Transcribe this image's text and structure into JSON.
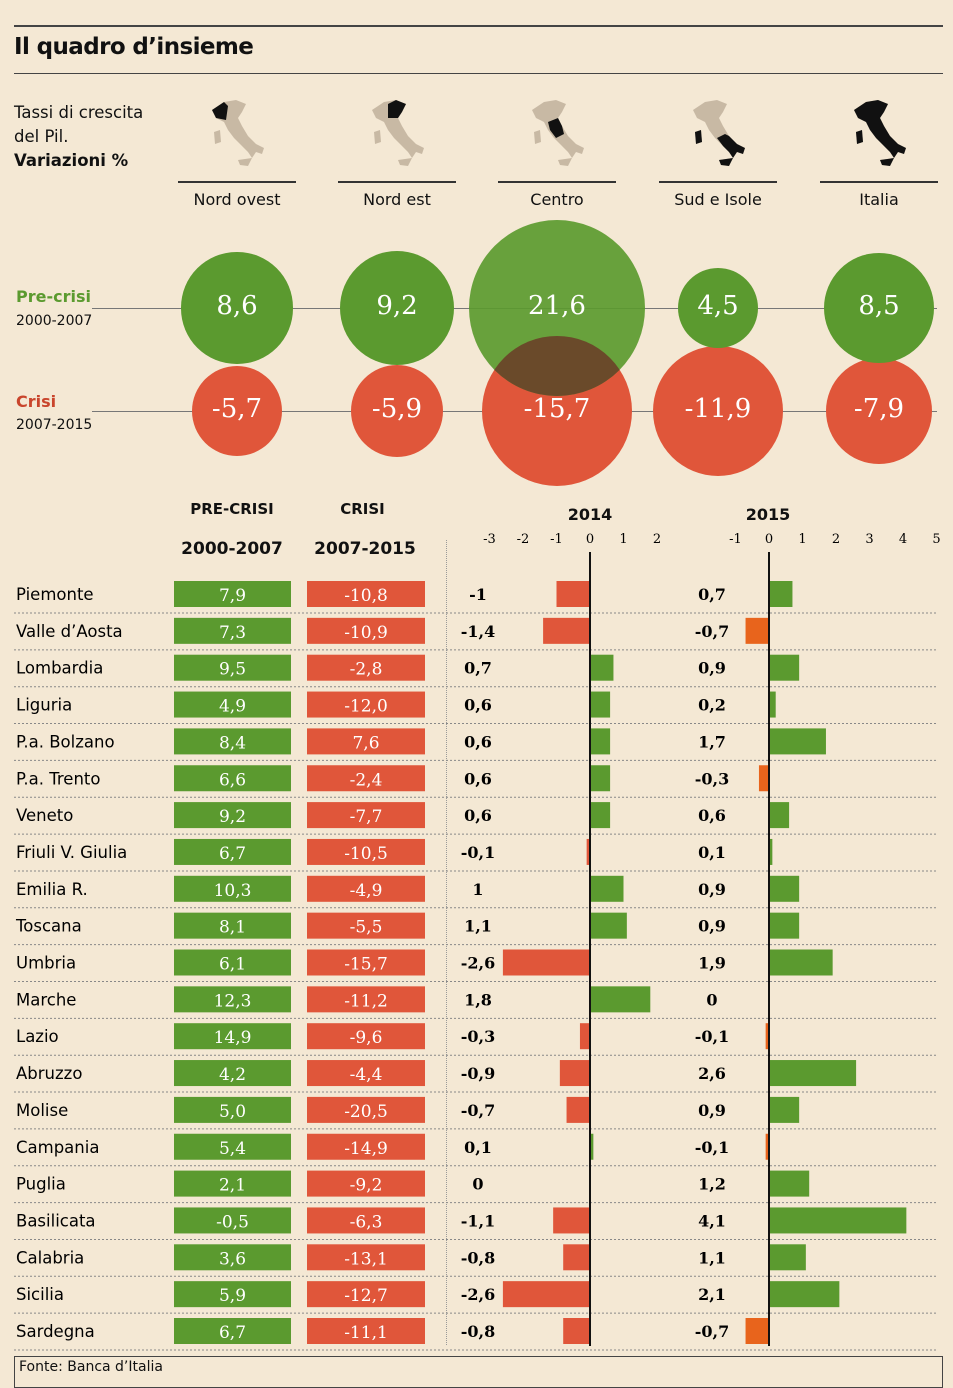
{
  "header": {
    "title": "Il quadro d’insieme",
    "intro_line1": "Tassi di crescita",
    "intro_line2": "del Pil.",
    "intro_bold": "Variazioni %"
  },
  "bubbles": {
    "rows": [
      {
        "label": "Pre-crisi",
        "years": "2000-2007",
        "color": "#5b9a2f"
      },
      {
        "label": "Crisi",
        "years": "2007-2015",
        "color": "#e0563a"
      }
    ],
    "areas": [
      {
        "name": "Nord ovest",
        "pre": "8,6",
        "pre_value": 8.6,
        "crisi": "-5,7",
        "crisi_value": -5.7,
        "map": "nord-ovest-map-icon"
      },
      {
        "name": "Nord est",
        "pre": "9,2",
        "pre_value": 9.2,
        "crisi": "-5,9",
        "crisi_value": -5.9,
        "map": "nord-est-map-icon"
      },
      {
        "name": "Centro",
        "pre": "21,6",
        "pre_value": 21.6,
        "crisi": "-15,7",
        "crisi_value": -15.7,
        "map": "centro-map-icon"
      },
      {
        "name": "Sud e Isole",
        "pre": "4,5",
        "pre_value": 4.5,
        "crisi": "-11,9",
        "crisi_value": -11.9,
        "map": "sud-isole-map-icon"
      },
      {
        "name": "Italia",
        "pre": "8,5",
        "pre_value": 8.5,
        "crisi": "-7,9",
        "crisi_value": -7.9,
        "map": "italia-map-icon"
      }
    ]
  },
  "table": {
    "col_pre": "PRE-CRISI",
    "col_pre_years": "2000-2007",
    "col_crisi": "CRISI",
    "col_crisi_years": "2007-2015",
    "col_2014": "2014",
    "col_2015": "2015",
    "ticks_2014": [
      "-3",
      "-2",
      "-1",
      "0",
      "1",
      "2"
    ],
    "ticks_2015": [
      "-1",
      "0",
      "1",
      "2",
      "3",
      "4",
      "5"
    ]
  },
  "colors": {
    "green": "#5b9a2f",
    "red": "#e0563a",
    "orange": "#e8641c",
    "overlap": "#6a4a2a",
    "background": "#f4e8d4"
  },
  "chart_data": {
    "type": "table",
    "title": "Il quadro d’insieme",
    "subtitle": "Tassi di crescita del Pil. Variazioni %",
    "columns": [
      "PRE-CRISI 2000-2007",
      "CRISI 2007-2015",
      "2014",
      "2015"
    ],
    "xlim_2014": [
      -3,
      2
    ],
    "xlim_2015": [
      -1,
      5
    ],
    "rows": [
      {
        "region": "Piemonte",
        "pre": "7,9",
        "crisi": "-10,8",
        "y2014": "-1",
        "v2014": -1,
        "y2015": "0,7",
        "v2015": 0.7
      },
      {
        "region": "Valle d’Aosta",
        "pre": "7,3",
        "crisi": "-10,9",
        "y2014": "-1,4",
        "v2014": -1.4,
        "y2015": "-0,7",
        "v2015": -0.7
      },
      {
        "region": "Lombardia",
        "pre": "9,5",
        "crisi": "-2,8",
        "y2014": "0,7",
        "v2014": 0.7,
        "y2015": "0,9",
        "v2015": 0.9
      },
      {
        "region": "Liguria",
        "pre": "4,9",
        "crisi": "-12,0",
        "y2014": "0,6",
        "v2014": 0.6,
        "y2015": "0,2",
        "v2015": 0.2
      },
      {
        "region": "P.a. Bolzano",
        "pre": "8,4",
        "crisi": "7,6",
        "y2014": "0,6",
        "v2014": 0.6,
        "y2015": "1,7",
        "v2015": 1.7
      },
      {
        "region": "P.a. Trento",
        "pre": "6,6",
        "crisi": "-2,4",
        "y2014": "0,6",
        "v2014": 0.6,
        "y2015": "-0,3",
        "v2015": -0.3
      },
      {
        "region": "Veneto",
        "pre": "9,2",
        "crisi": "-7,7",
        "y2014": "0,6",
        "v2014": 0.6,
        "y2015": "0,6",
        "v2015": 0.6
      },
      {
        "region": "Friuli V. Giulia",
        "pre": "6,7",
        "crisi": "-10,5",
        "y2014": "-0,1",
        "v2014": -0.1,
        "y2015": "0,1",
        "v2015": 0.1
      },
      {
        "region": "Emilia R.",
        "pre": "10,3",
        "crisi": "-4,9",
        "y2014": "1",
        "v2014": 1,
        "y2015": "0,9",
        "v2015": 0.9
      },
      {
        "region": "Toscana",
        "pre": "8,1",
        "crisi": "-5,5",
        "y2014": "1,1",
        "v2014": 1.1,
        "y2015": "0,9",
        "v2015": 0.9
      },
      {
        "region": "Umbria",
        "pre": "6,1",
        "crisi": "-15,7",
        "y2014": "-2,6",
        "v2014": -2.6,
        "y2015": "1,9",
        "v2015": 1.9
      },
      {
        "region": "Marche",
        "pre": "12,3",
        "crisi": "-11,2",
        "y2014": "1,8",
        "v2014": 1.8,
        "y2015": "0",
        "v2015": 0
      },
      {
        "region": "Lazio",
        "pre": "14,9",
        "crisi": "-9,6",
        "y2014": "-0,3",
        "v2014": -0.3,
        "y2015": "-0,1",
        "v2015": -0.1
      },
      {
        "region": "Abruzzo",
        "pre": "4,2",
        "crisi": "-4,4",
        "y2014": "-0,9",
        "v2014": -0.9,
        "y2015": "2,6",
        "v2015": 2.6
      },
      {
        "region": "Molise",
        "pre": "5,0",
        "crisi": "-20,5",
        "y2014": "-0,7",
        "v2014": -0.7,
        "y2015": "0,9",
        "v2015": 0.9
      },
      {
        "region": "Campania",
        "pre": "5,4",
        "crisi": "-14,9",
        "y2014": "0,1",
        "v2014": 0.1,
        "y2015": "-0,1",
        "v2015": -0.1
      },
      {
        "region": "Puglia",
        "pre": "2,1",
        "crisi": "-9,2",
        "y2014": "0",
        "v2014": 0,
        "y2015": "1,2",
        "v2015": 1.2
      },
      {
        "region": "Basilicata",
        "pre": "-0,5",
        "crisi": "-6,3",
        "y2014": "-1,1",
        "v2014": -1.1,
        "y2015": "4,1",
        "v2015": 4.1
      },
      {
        "region": "Calabria",
        "pre": "3,6",
        "crisi": "-13,1",
        "y2014": "-0,8",
        "v2014": -0.8,
        "y2015": "1,1",
        "v2015": 1.1
      },
      {
        "region": "Sicilia",
        "pre": "5,9",
        "crisi": "-12,7",
        "y2014": "-2,6",
        "v2014": -2.6,
        "y2015": "2,1",
        "v2015": 2.1
      },
      {
        "region": "Sardegna",
        "pre": "6,7",
        "crisi": "-11,1",
        "y2014": "-0,8",
        "v2014": -0.8,
        "y2015": "-0,7",
        "v2015": -0.7
      }
    ]
  },
  "footer": {
    "source": "Fonte: Banca d’Italia"
  }
}
